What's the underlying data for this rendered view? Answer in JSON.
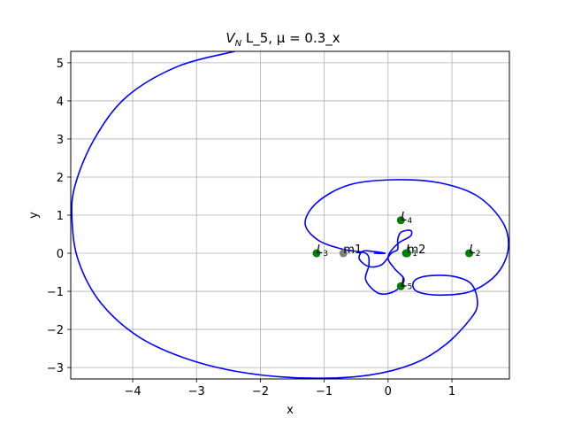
{
  "chart_data": {
    "type": "scatter",
    "title_main": "V",
    "title_sub": "N",
    "title_rest": " L_5, μ = 0.3_x",
    "xlabel": "x",
    "ylabel": "y",
    "xlim": [
      -4.97,
      1.9
    ],
    "ylim": [
      -3.3,
      5.3
    ],
    "xticks": [
      -4,
      -3,
      -2,
      -1,
      0,
      1
    ],
    "yticks": [
      -3,
      -2,
      -1,
      0,
      1,
      2,
      3,
      4,
      5
    ],
    "xtick_labels": [
      "−4",
      "−3",
      "−2",
      "−1",
      "0",
      "1"
    ],
    "ytick_labels": [
      "−3",
      "−2",
      "−1",
      "0",
      "1",
      "2",
      "3",
      "4",
      "5"
    ],
    "grid": true,
    "trajectory_color": "#0000ff",
    "trajectory": [
      [
        -2.4,
        5.3
      ],
      [
        -3.3,
        4.9
      ],
      [
        -4.1,
        4.1
      ],
      [
        -4.6,
        3.0
      ],
      [
        -4.9,
        1.8
      ],
      [
        -4.95,
        0.9
      ],
      [
        -4.85,
        -0.2
      ],
      [
        -4.5,
        -1.3
      ],
      [
        -3.9,
        -2.2
      ],
      [
        -3.1,
        -2.8
      ],
      [
        -2.2,
        -3.15
      ],
      [
        -1.2,
        -3.28
      ],
      [
        -0.3,
        -3.2
      ],
      [
        0.4,
        -2.9
      ],
      [
        0.9,
        -2.4
      ],
      [
        1.3,
        -1.7
      ],
      [
        1.4,
        -1.3
      ],
      [
        1.3,
        -0.8
      ],
      [
        1.0,
        -0.6
      ],
      [
        0.6,
        -0.6
      ],
      [
        0.4,
        -0.75
      ],
      [
        0.45,
        -1.0
      ],
      [
        0.8,
        -1.1
      ],
      [
        1.3,
        -1.0
      ],
      [
        1.7,
        -0.55
      ],
      [
        1.88,
        0.1
      ],
      [
        1.8,
        0.8
      ],
      [
        1.4,
        1.5
      ],
      [
        0.8,
        1.85
      ],
      [
        0.1,
        1.93
      ],
      [
        -0.6,
        1.8
      ],
      [
        -1.1,
        1.35
      ],
      [
        -1.3,
        0.8
      ],
      [
        -1.1,
        0.35
      ],
      [
        -0.7,
        0.1
      ],
      [
        -0.35,
        0.0
      ],
      [
        -0.3,
        -0.3
      ],
      [
        -0.35,
        -0.7
      ],
      [
        -0.15,
        -1.05
      ],
      [
        0.1,
        -1.0
      ],
      [
        0.25,
        -0.7
      ],
      [
        0.1,
        -0.4
      ],
      [
        0.0,
        -0.1
      ],
      [
        0.15,
        0.25
      ],
      [
        0.35,
        0.45
      ],
      [
        0.35,
        0.6
      ],
      [
        0.2,
        0.55
      ],
      [
        0.15,
        0.35
      ],
      [
        0.15,
        0.1
      ],
      [
        0.05,
        0.0
      ],
      [
        -0.1,
        -0.3
      ],
      [
        -0.3,
        -0.35
      ],
      [
        -0.45,
        -0.15
      ],
      [
        -0.4,
        0.05
      ],
      [
        -0.25,
        0.05
      ],
      [
        -0.05,
        0.0
      ],
      [
        -0.22,
        0.0
      ]
    ],
    "points": [
      {
        "label": "L",
        "sub": "1",
        "x": 0.28,
        "y": 0.0,
        "color": "#008000"
      },
      {
        "label": "L",
        "sub": "2",
        "x": 1.27,
        "y": 0.0,
        "color": "#008000"
      },
      {
        "label": "L",
        "sub": "3",
        "x": -1.12,
        "y": 0.0,
        "color": "#008000"
      },
      {
        "label": "L",
        "sub": "4",
        "x": 0.2,
        "y": 0.866,
        "color": "#008000"
      },
      {
        "label": "L",
        "sub": "5",
        "x": 0.2,
        "y": -0.866,
        "color": "#008000"
      },
      {
        "label": "m1",
        "sub": "",
        "x": -0.7,
        "y": 0.0,
        "color": "#808080"
      },
      {
        "label": "m2",
        "sub": "",
        "x": 0.3,
        "y": 0.0,
        "color": "#008000"
      }
    ]
  }
}
